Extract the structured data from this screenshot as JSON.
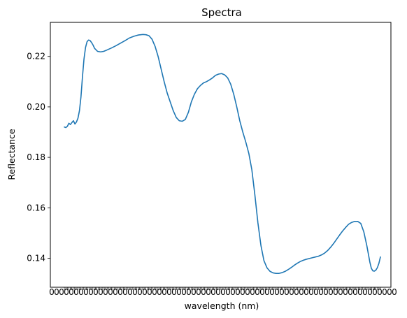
{
  "chart_data": {
    "type": "line",
    "title": "Spectra",
    "xlabel": "wavelength (nm)",
    "ylabel": "Reflectance",
    "ylim": [
      0.1285,
      0.2335
    ],
    "yticks": [
      0.14,
      0.16,
      0.18,
      0.2,
      0.22
    ],
    "ytick_labels": [
      "0.14",
      "0.16",
      "0.18",
      "0.20",
      "0.22"
    ],
    "x_axis": "categorical wavelength labels (overlapping, illegible)",
    "x_tick_count": 215,
    "grid": false,
    "legend": "none",
    "line_color": "#1f77b4",
    "series": [
      {
        "points": [
          [
            0,
            0.192
          ],
          [
            1,
            0.1918
          ],
          [
            2,
            0.1923
          ],
          [
            3,
            0.1935
          ],
          [
            4,
            0.193
          ],
          [
            5,
            0.1938
          ],
          [
            6,
            0.1945
          ],
          [
            7,
            0.1932
          ],
          [
            8,
            0.194
          ],
          [
            9,
            0.1955
          ],
          [
            10,
            0.1985
          ],
          [
            11,
            0.204
          ],
          [
            12,
            0.212
          ],
          [
            13,
            0.219
          ],
          [
            14,
            0.2235
          ],
          [
            15,
            0.2258
          ],
          [
            16,
            0.2265
          ],
          [
            17,
            0.2263
          ],
          [
            18,
            0.2255
          ],
          [
            19,
            0.2245
          ],
          [
            20,
            0.2232
          ],
          [
            22,
            0.222
          ],
          [
            24,
            0.2218
          ],
          [
            26,
            0.222
          ],
          [
            28,
            0.2225
          ],
          [
            31,
            0.2233
          ],
          [
            34,
            0.2242
          ],
          [
            37,
            0.2252
          ],
          [
            40,
            0.2262
          ],
          [
            43,
            0.2273
          ],
          [
            46,
            0.228
          ],
          [
            49,
            0.2285
          ],
          [
            52,
            0.2287
          ],
          [
            54,
            0.2286
          ],
          [
            56,
            0.2282
          ],
          [
            58,
            0.2268
          ],
          [
            60,
            0.224
          ],
          [
            62,
            0.22
          ],
          [
            64,
            0.215
          ],
          [
            66,
            0.21
          ],
          [
            68,
            0.2055
          ],
          [
            70,
            0.202
          ],
          [
            72,
            0.1985
          ],
          [
            74,
            0.1958
          ],
          [
            76,
            0.1945
          ],
          [
            78,
            0.1943
          ],
          [
            80,
            0.195
          ],
          [
            82,
            0.1978
          ],
          [
            84,
            0.202
          ],
          [
            86,
            0.205
          ],
          [
            88,
            0.2072
          ],
          [
            90,
            0.2085
          ],
          [
            92,
            0.2095
          ],
          [
            94,
            0.21
          ],
          [
            96,
            0.2107
          ],
          [
            98,
            0.2115
          ],
          [
            100,
            0.2125
          ],
          [
            102,
            0.213
          ],
          [
            104,
            0.2132
          ],
          [
            106,
            0.2127
          ],
          [
            108,
            0.2115
          ],
          [
            110,
            0.209
          ],
          [
            112,
            0.205
          ],
          [
            114,
            0.2
          ],
          [
            116,
            0.1945
          ],
          [
            118,
            0.19
          ],
          [
            120,
            0.186
          ],
          [
            122,
            0.1815
          ],
          [
            124,
            0.175
          ],
          [
            126,
            0.165
          ],
          [
            128,
            0.154
          ],
          [
            130,
            0.145
          ],
          [
            132,
            0.139
          ],
          [
            134,
            0.1362
          ],
          [
            136,
            0.1348
          ],
          [
            138,
            0.1342
          ],
          [
            140,
            0.134
          ],
          [
            142,
            0.134
          ],
          [
            144,
            0.1343
          ],
          [
            146,
            0.1348
          ],
          [
            148,
            0.1355
          ],
          [
            150,
            0.1363
          ],
          [
            152,
            0.1372
          ],
          [
            154,
            0.138
          ],
          [
            156,
            0.1387
          ],
          [
            158,
            0.1392
          ],
          [
            160,
            0.1396
          ],
          [
            162,
            0.1399
          ],
          [
            164,
            0.1402
          ],
          [
            166,
            0.1405
          ],
          [
            168,
            0.1408
          ],
          [
            170,
            0.1413
          ],
          [
            172,
            0.142
          ],
          [
            174,
            0.143
          ],
          [
            176,
            0.1443
          ],
          [
            178,
            0.1458
          ],
          [
            180,
            0.1475
          ],
          [
            182,
            0.1492
          ],
          [
            184,
            0.1508
          ],
          [
            186,
            0.1522
          ],
          [
            188,
            0.1535
          ],
          [
            190,
            0.1542
          ],
          [
            192,
            0.1546
          ],
          [
            194,
            0.1546
          ],
          [
            196,
            0.1538
          ],
          [
            198,
            0.1505
          ],
          [
            200,
            0.145
          ],
          [
            202,
            0.1385
          ],
          [
            203,
            0.136
          ],
          [
            204,
            0.135
          ],
          [
            205,
            0.1349
          ],
          [
            206,
            0.1353
          ],
          [
            207,
            0.1363
          ],
          [
            208,
            0.138
          ],
          [
            209,
            0.1405
          ]
        ]
      }
    ]
  }
}
